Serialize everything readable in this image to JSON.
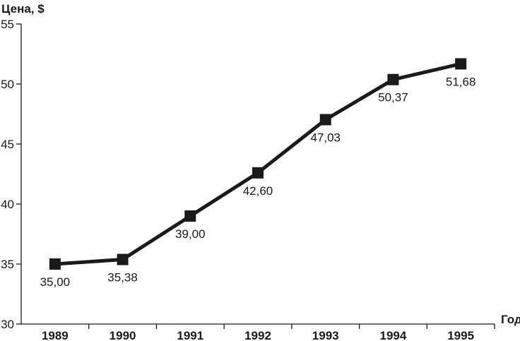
{
  "chart_data": {
    "type": "line",
    "ylabel": "Цена, $",
    "xlabel": "Год",
    "categories": [
      "1989",
      "1990",
      "1991",
      "1992",
      "1993",
      "1994",
      "1995"
    ],
    "series": [
      {
        "values": [
          35.0,
          35.38,
          39.0,
          42.6,
          47.03,
          50.37,
          51.68
        ],
        "labels": [
          "35,00",
          "35,38",
          "39,00",
          "42,60",
          "47,03",
          "50,37",
          "51,68"
        ]
      }
    ],
    "ylim": [
      30,
      55
    ],
    "yticks": [
      "30",
      "35",
      "40",
      "45",
      "50",
      "55"
    ],
    "grid": false,
    "legend": "none",
    "colors": {
      "line": "#1a1a1a",
      "marker": "#1a1a1a"
    }
  }
}
